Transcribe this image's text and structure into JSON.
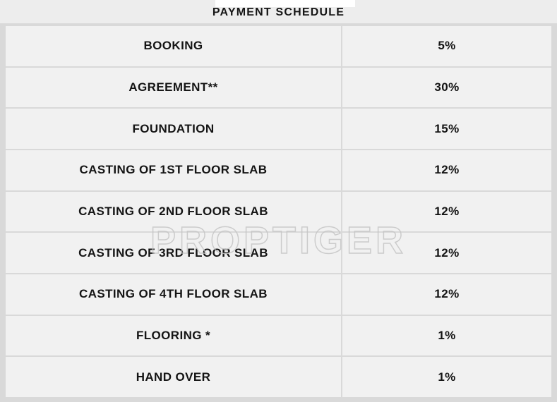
{
  "title": "PAYMENT SCHEDULE",
  "watermark": "PROPTIGER",
  "colors": {
    "page_bg": "#ededed",
    "table_gap_bg": "#d9d9d9",
    "row_bg": "#f1f1f1",
    "title_tab_bg": "#ffffff",
    "text": "#141414",
    "watermark_stroke": "#c6c6c6"
  },
  "table": {
    "rows": [
      {
        "stage": "BOOKING",
        "percentage": "5%"
      },
      {
        "stage": "AGREEMENT**",
        "percentage": "30%"
      },
      {
        "stage": "FOUNDATION",
        "percentage": "15%"
      },
      {
        "stage": "CASTING OF 1ST FLOOR SLAB",
        "percentage": "12%"
      },
      {
        "stage": "CASTING OF 2ND FLOOR SLAB",
        "percentage": "12%"
      },
      {
        "stage": "CASTING OF 3RD FLOOR SLAB",
        "percentage": "12%"
      },
      {
        "stage": "CASTING OF 4TH FLOOR SLAB",
        "percentage": "12%"
      },
      {
        "stage": "FLOORING *",
        "percentage": "1%"
      },
      {
        "stage": "HAND OVER",
        "percentage": "1%"
      }
    ]
  }
}
